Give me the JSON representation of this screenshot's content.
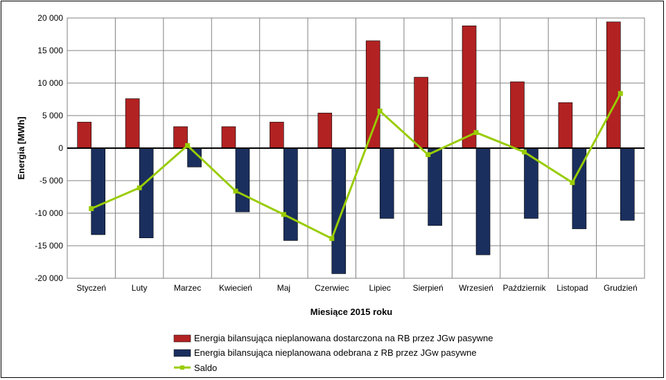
{
  "chart_data": {
    "type": "bar",
    "xlabel": "Miesiące 2015 roku",
    "ylabel": "Energia [MWh]",
    "ylim": [
      -20000,
      20000
    ],
    "y_ticks": [
      "20 000",
      "15 000",
      "10 000",
      "5 000",
      "0",
      "-5 000",
      "-10 000",
      "-15 000",
      "-20 000"
    ],
    "y_tick_values": [
      20000,
      15000,
      10000,
      5000,
      0,
      -5000,
      -10000,
      -15000,
      -20000
    ],
    "grid": true,
    "legend_position": "bottom",
    "categories": [
      "Styczeń",
      "Luty",
      "Marzec",
      "Kwiecień",
      "Maj",
      "Czerwiec",
      "Lipiec",
      "Sierpień",
      "Wrzesień",
      "Październik",
      "Listopad",
      "Grudzień"
    ],
    "series": [
      {
        "name": "Energia bilansująca nieplanowana dostarczona na RB przez JGw pasywne",
        "type": "bar",
        "color": "#b22222",
        "values": [
          4000,
          7600,
          3300,
          3300,
          4000,
          5400,
          16500,
          10900,
          18800,
          10200,
          7000,
          19400
        ]
      },
      {
        "name": "Energia bilansująca nieplanowana odebrana z RB przez JGw pasywne",
        "type": "bar",
        "color": "#1a2f5e",
        "values": [
          -13300,
          -13800,
          -2900,
          -9800,
          -14200,
          -19300,
          -10800,
          -11900,
          -16400,
          -10800,
          -12400,
          -11100
        ]
      },
      {
        "name": "Saldo",
        "type": "line",
        "color": "#99cc00",
        "values": [
          -9300,
          -6100,
          400,
          -6600,
          -10200,
          -13900,
          5700,
          -1000,
          2400,
          -600,
          -5300,
          8400
        ]
      }
    ]
  }
}
